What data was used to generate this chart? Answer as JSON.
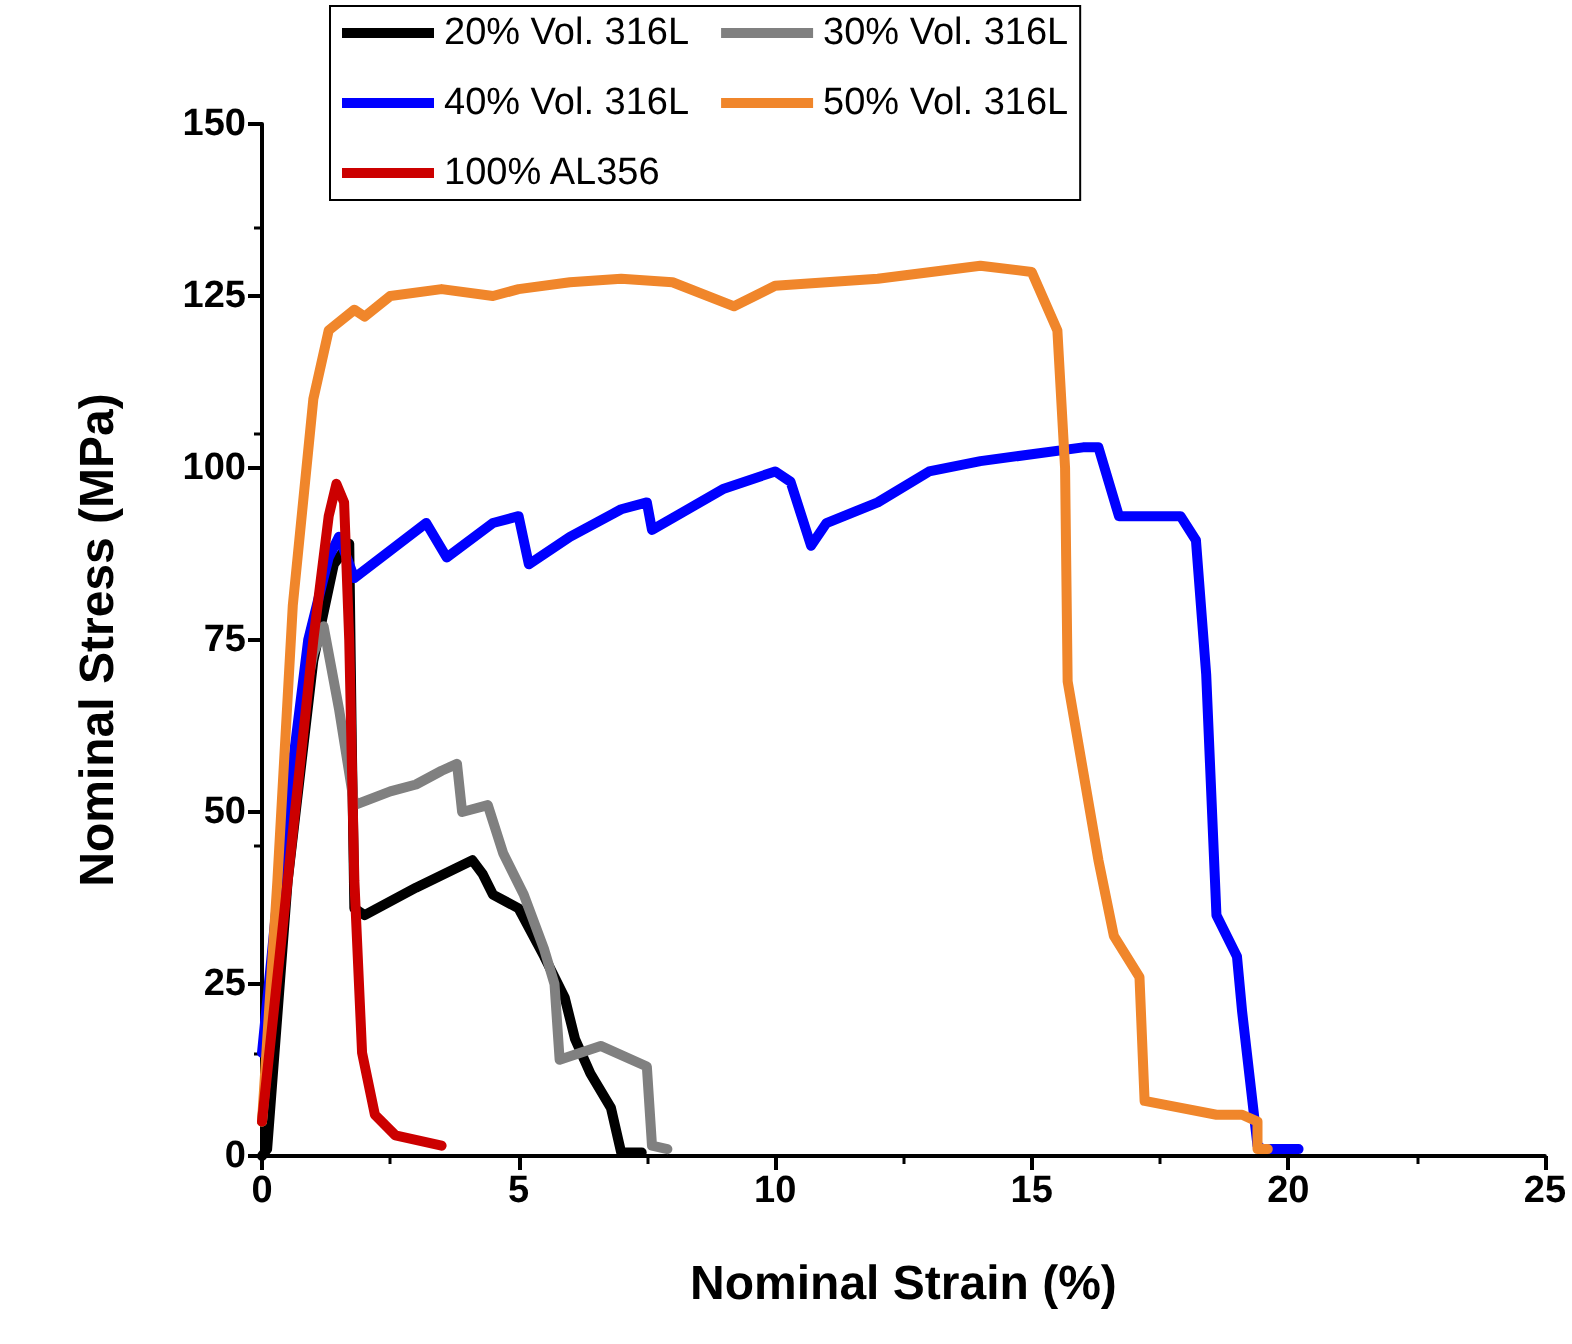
{
  "chart_data": {
    "type": "line",
    "xlabel": "Nominal Strain (%)",
    "ylabel": "Nominal Stress (MPa)",
    "xlim": [
      0,
      25
    ],
    "xticks": [
      0,
      5,
      10,
      15,
      20,
      25
    ],
    "ylim": [
      0,
      150
    ],
    "yticks": [
      0,
      25,
      50,
      75,
      100,
      125,
      150
    ],
    "grid": false,
    "legend": "top",
    "marker": "none",
    "line_style": "solid",
    "series": [
      {
        "name": "20% Vol. 316L",
        "color": "#000000",
        "x": [
          0,
          0.1,
          0.5,
          1.0,
          1.4,
          1.7,
          1.75,
          1.8,
          2.0,
          3.0,
          4.1,
          4.3,
          4.5,
          5.0,
          5.5,
          5.9,
          6.1,
          6.4,
          6.8,
          7.0,
          7.4
        ],
        "values": [
          0,
          1,
          40,
          72,
          86,
          89,
          60,
          36,
          35,
          39,
          43,
          41,
          38,
          36,
          29,
          23,
          17,
          12,
          7,
          0.5,
          0.5
        ]
      },
      {
        "name": "30% Vol. 316L",
        "color": "#808080",
        "x": [
          0,
          0.7,
          1.0,
          1.2,
          1.5,
          1.8,
          2.5,
          3.0,
          3.5,
          3.8,
          3.9,
          4.4,
          4.7,
          5.1,
          5.5,
          5.7,
          5.8,
          6.6,
          7.5,
          7.6,
          7.9
        ],
        "values": [
          5,
          62,
          73,
          77,
          65,
          51,
          53,
          54,
          56,
          57,
          50,
          51,
          44,
          38,
          30,
          25,
          14,
          16,
          13,
          1.5,
          1
        ]
      },
      {
        "name": "40% Vol. 316L",
        "color": "#0000ff",
        "x": [
          0,
          0.4,
          0.9,
          1.3,
          1.5,
          1.8,
          2.5,
          3.2,
          3.6,
          4.5,
          5.0,
          5.2,
          6.0,
          7.0,
          7.5,
          7.6,
          9.0,
          10.0,
          10.3,
          10.7,
          11.0,
          12.0,
          13.0,
          14.0,
          15.0,
          16.0,
          16.3,
          16.7,
          17.9,
          18.2,
          18.4,
          18.6,
          19.0,
          19.1,
          19.4,
          19.5,
          20.2
        ],
        "values": [
          15,
          45,
          75,
          87,
          90,
          84,
          88,
          92,
          87,
          92,
          93,
          86,
          90,
          94,
          95,
          91,
          97,
          99.5,
          98,
          88.7,
          92,
          95,
          99.5,
          101,
          102,
          103,
          103,
          93,
          93,
          89.5,
          70,
          35,
          29,
          21,
          1.5,
          1,
          1
        ]
      },
      {
        "name": "50% Vol. 316L",
        "color": "#f0862b",
        "x": [
          0,
          0.3,
          0.6,
          1.0,
          1.3,
          1.8,
          2.0,
          2.5,
          3.5,
          4.5,
          5.0,
          6.0,
          7.0,
          8.0,
          9.2,
          10.0,
          12.0,
          14.0,
          15.0,
          15.5,
          15.65,
          15.7,
          16.3,
          16.6,
          17.1,
          17.2,
          18.6,
          19.1,
          19.4,
          19.4,
          19.6
        ],
        "values": [
          5,
          40,
          80,
          110,
          120,
          123,
          122,
          125,
          126,
          125,
          126,
          127,
          127.5,
          127,
          123.5,
          126.5,
          127.5,
          129.4,
          128.5,
          120,
          100,
          69,
          43,
          32,
          26,
          8,
          6,
          6,
          5,
          1,
          1
        ]
      },
      {
        "name": "100% AL356",
        "color": "#cc0000",
        "x": [
          0,
          0.5,
          1.0,
          1.3,
          1.45,
          1.6,
          1.7,
          1.8,
          1.95,
          2.2,
          2.6,
          3.5
        ],
        "values": [
          5,
          40,
          75,
          93,
          97.7,
          95,
          75,
          40,
          15,
          6,
          3,
          1.5
        ]
      }
    ]
  }
}
